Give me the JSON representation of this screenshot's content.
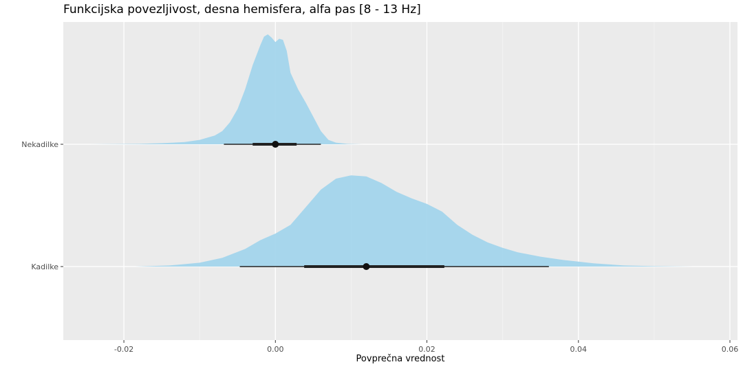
{
  "chart_data": {
    "type": "density-halfeye",
    "title": "Funkcijska povezljivost, desna hemisfera, alfa pas [8 - 13 Hz]",
    "xlabel": "Povprečna vrednost",
    "ylabel": "",
    "xlim": [
      -0.028,
      0.061
    ],
    "x_ticks": [
      -0.02,
      0.0,
      0.02,
      0.04,
      0.06
    ],
    "x_tick_labels": [
      "-0.02",
      "0.00",
      "0.02",
      "0.04",
      "0.06"
    ],
    "grid": true,
    "background": "#ebebeb",
    "fill_color": "#a3d5ec",
    "interval_color": "#222222",
    "groups": [
      {
        "label": "Nekadilke",
        "point": 0.0,
        "interval_66": [
          -0.003,
          0.0028
        ],
        "interval_95": [
          -0.0068,
          0.006
        ],
        "density": [
          [
            -0.0245,
            0.0
          ],
          [
            -0.018,
            0.004
          ],
          [
            -0.015,
            0.01
          ],
          [
            -0.012,
            0.02
          ],
          [
            -0.01,
            0.04
          ],
          [
            -0.008,
            0.08
          ],
          [
            -0.007,
            0.12
          ],
          [
            -0.006,
            0.2
          ],
          [
            -0.005,
            0.32
          ],
          [
            -0.004,
            0.5
          ],
          [
            -0.003,
            0.72
          ],
          [
            -0.002,
            0.9
          ],
          [
            -0.0015,
            0.98
          ],
          [
            -0.001,
            1.0
          ],
          [
            -0.0005,
            0.97
          ],
          [
            0.0,
            0.93
          ],
          [
            0.0005,
            0.96
          ],
          [
            0.001,
            0.95
          ],
          [
            0.0015,
            0.85
          ],
          [
            0.002,
            0.65
          ],
          [
            0.003,
            0.5
          ],
          [
            0.004,
            0.38
          ],
          [
            0.005,
            0.25
          ],
          [
            0.006,
            0.12
          ],
          [
            0.007,
            0.04
          ],
          [
            0.008,
            0.015
          ],
          [
            0.0095,
            0.004
          ],
          [
            0.0115,
            0.0
          ]
        ]
      },
      {
        "label": "Kadilke",
        "point": 0.012,
        "interval_66": [
          0.0038,
          0.0223
        ],
        "interval_95": [
          -0.0047,
          0.0361
        ],
        "density": [
          [
            -0.0185,
            0.0
          ],
          [
            -0.014,
            0.01
          ],
          [
            -0.01,
            0.035
          ],
          [
            -0.007,
            0.08
          ],
          [
            -0.004,
            0.16
          ],
          [
            -0.002,
            0.24
          ],
          [
            0.0,
            0.3
          ],
          [
            0.002,
            0.38
          ],
          [
            0.004,
            0.54
          ],
          [
            0.006,
            0.7
          ],
          [
            0.008,
            0.8
          ],
          [
            0.01,
            0.83
          ],
          [
            0.012,
            0.82
          ],
          [
            0.014,
            0.76
          ],
          [
            0.016,
            0.68
          ],
          [
            0.018,
            0.62
          ],
          [
            0.02,
            0.57
          ],
          [
            0.022,
            0.5
          ],
          [
            0.024,
            0.38
          ],
          [
            0.026,
            0.29
          ],
          [
            0.028,
            0.22
          ],
          [
            0.03,
            0.17
          ],
          [
            0.032,
            0.13
          ],
          [
            0.035,
            0.09
          ],
          [
            0.038,
            0.06
          ],
          [
            0.042,
            0.03
          ],
          [
            0.046,
            0.01
          ],
          [
            0.05,
            0.004
          ],
          [
            0.055,
            0.0
          ]
        ]
      }
    ]
  }
}
